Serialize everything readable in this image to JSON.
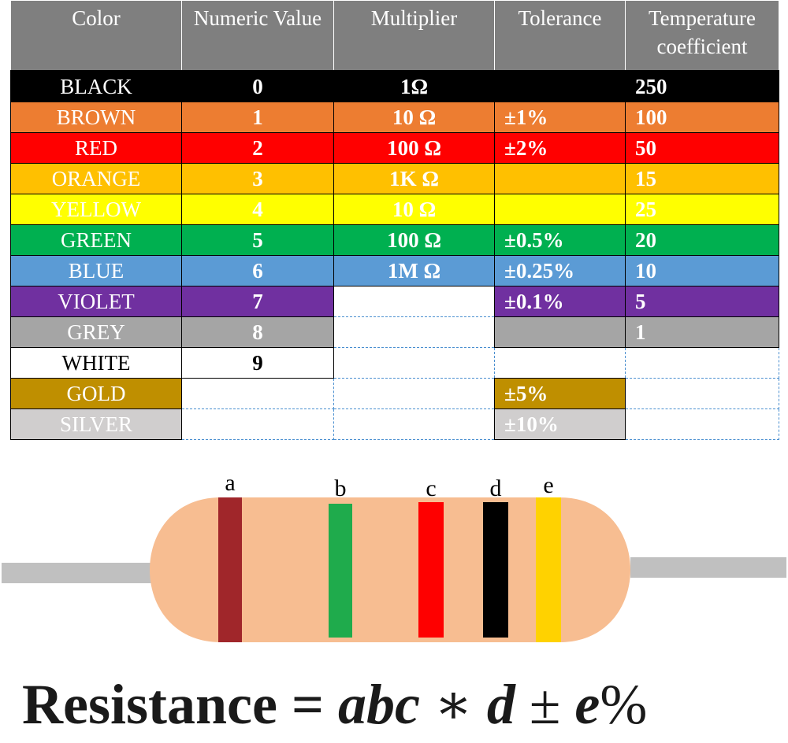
{
  "table": {
    "headers": [
      "Color",
      "Numeric Value",
      "Multiplier",
      "Tolerance",
      "Temperature coefficient"
    ],
    "rows": [
      {
        "name": "BLACK",
        "bg": "#000000",
        "fg": "#ffffff",
        "value": "0",
        "multiplier": "1Ω",
        "tolerance": "",
        "temp": "250"
      },
      {
        "name": "BROWN",
        "bg": "#ed7d31",
        "fg": "#ffffff",
        "value": "1",
        "multiplier": "10 Ω",
        "tolerance": "±1%",
        "temp": "100"
      },
      {
        "name": "RED",
        "bg": "#ff0000",
        "fg": "#ffffff",
        "value": "2",
        "multiplier": "100 Ω",
        "tolerance": "±2%",
        "temp": "50"
      },
      {
        "name": "ORANGE",
        "bg": "#ffc000",
        "fg": "#ffffff",
        "value": "3",
        "multiplier": "1K Ω",
        "tolerance": "",
        "temp": "15"
      },
      {
        "name": "YELLOW",
        "bg": "#ffff00",
        "fg": "#ffffff",
        "value": "4",
        "multiplier": "10 Ω",
        "tolerance": "",
        "temp": "25"
      },
      {
        "name": "GREEN",
        "bg": "#00b050",
        "fg": "#ffffff",
        "value": "5",
        "multiplier": "100 Ω",
        "tolerance": "±0.5%",
        "temp": "20"
      },
      {
        "name": "BLUE",
        "bg": "#5b9bd5",
        "fg": "#ffffff",
        "value": "6",
        "multiplier": "1M Ω",
        "tolerance": "±0.25%",
        "temp": "10"
      },
      {
        "name": "VIOLET",
        "bg": "#7030a0",
        "fg": "#ffffff",
        "value": "7",
        "multiplier": null,
        "tolerance": "±0.1%",
        "temp": "5"
      },
      {
        "name": "GREY",
        "bg": "#a5a5a5",
        "fg": "#ffffff",
        "value": "8",
        "multiplier": null,
        "tolerance": "",
        "temp": "1"
      },
      {
        "name": "WHITE",
        "bg": "#ffffff",
        "fg": "#000000",
        "value": "9",
        "multiplier": null,
        "tolerance": null,
        "temp": null
      },
      {
        "name": "GOLD",
        "bg": "#bf8f00",
        "fg": "#ffffff",
        "value": null,
        "multiplier": null,
        "tolerance": "±5%",
        "temp": null
      },
      {
        "name": "SILVER",
        "bg": "#d0cece",
        "fg": "#ffffff",
        "value": null,
        "multiplier": null,
        "tolerance": "±10%",
        "temp": null
      }
    ]
  },
  "resistor": {
    "body_color": "#f7bd91",
    "lead_color": "#c0c0c0",
    "bands": [
      {
        "label": "a",
        "color": "#a0262a"
      },
      {
        "label": "b",
        "color": "#1fab4c"
      },
      {
        "label": "c",
        "color": "#fe0000"
      },
      {
        "label": "d",
        "color": "#000000"
      },
      {
        "label": "e",
        "color": "#ffd200"
      }
    ]
  },
  "formula": {
    "lhs": "Resistance",
    "equals": "=",
    "digits": "abc",
    "times": "∗",
    "multiplier": "d",
    "plusminus": "±",
    "tolerance": "e",
    "percent": "%"
  }
}
